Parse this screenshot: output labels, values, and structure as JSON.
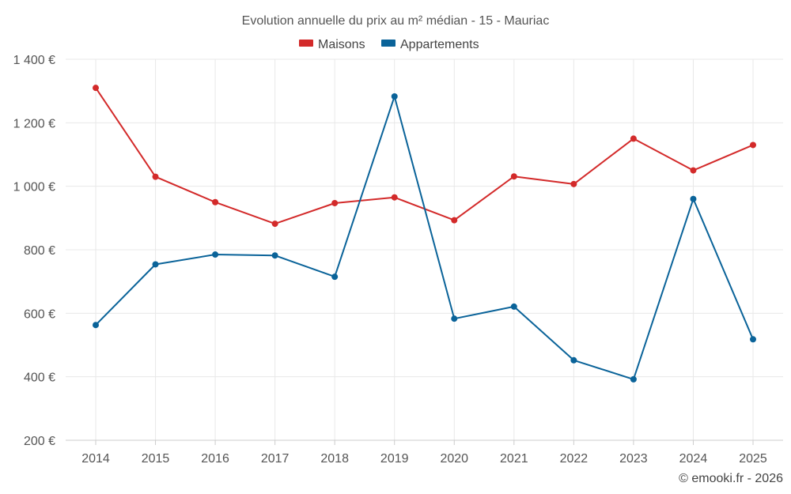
{
  "chart_data": {
    "type": "line",
    "title": "Evolution annuelle du prix au m² médian - 15 - Mauriac",
    "categories": [
      "2014",
      "2015",
      "2016",
      "2017",
      "2018",
      "2019",
      "2020",
      "2021",
      "2022",
      "2023",
      "2024",
      "2025"
    ],
    "y_tick_labels": [
      "200 €",
      "400 €",
      "600 €",
      "800 €",
      "1 000 €",
      "1 200 €",
      "1 400 €"
    ],
    "y_ticks": [
      200,
      400,
      600,
      800,
      1000,
      1200,
      1400
    ],
    "ylim": [
      200,
      1400
    ],
    "xlabel": "",
    "ylabel": "",
    "grid": true,
    "legend_position": "top-center",
    "series": [
      {
        "name": "Maisons",
        "color": "#d32a2a",
        "values": [
          1310,
          1030,
          950,
          882,
          947,
          965,
          893,
          1031,
          1007,
          1150,
          1050,
          1130
        ]
      },
      {
        "name": "Appartements",
        "color": "#0a6399",
        "values": [
          563,
          754,
          785,
          782,
          715,
          1283,
          583,
          621,
          452,
          392,
          960,
          518
        ]
      }
    ],
    "credit": "© emooki.fr - 2026"
  }
}
